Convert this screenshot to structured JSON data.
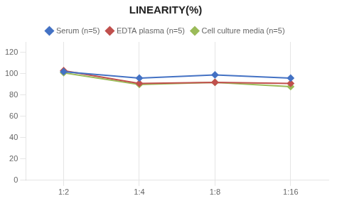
{
  "chart_data": {
    "type": "line",
    "title": "LINEARITY(%)",
    "categories": [
      "1:2",
      "1:4",
      "1:8",
      "1:16"
    ],
    "series": [
      {
        "name": "Serum (n=5)",
        "color": "#4472C4",
        "marker": "diamond",
        "values": [
          102,
          96,
          99,
          96
        ]
      },
      {
        "name": "EDTA plasma (n=5)",
        "color": "#C0504D",
        "marker": "diamond",
        "values": [
          103,
          91,
          92,
          91
        ]
      },
      {
        "name": "Cell culture media (n=5)",
        "color": "#9BBB59",
        "marker": "diamond",
        "values": [
          101,
          90,
          92,
          88
        ]
      }
    ],
    "ylim": [
      0,
      130
    ],
    "yticks": [
      0,
      20,
      40,
      60,
      80,
      100,
      120
    ],
    "grid": "x",
    "legend": "top"
  }
}
